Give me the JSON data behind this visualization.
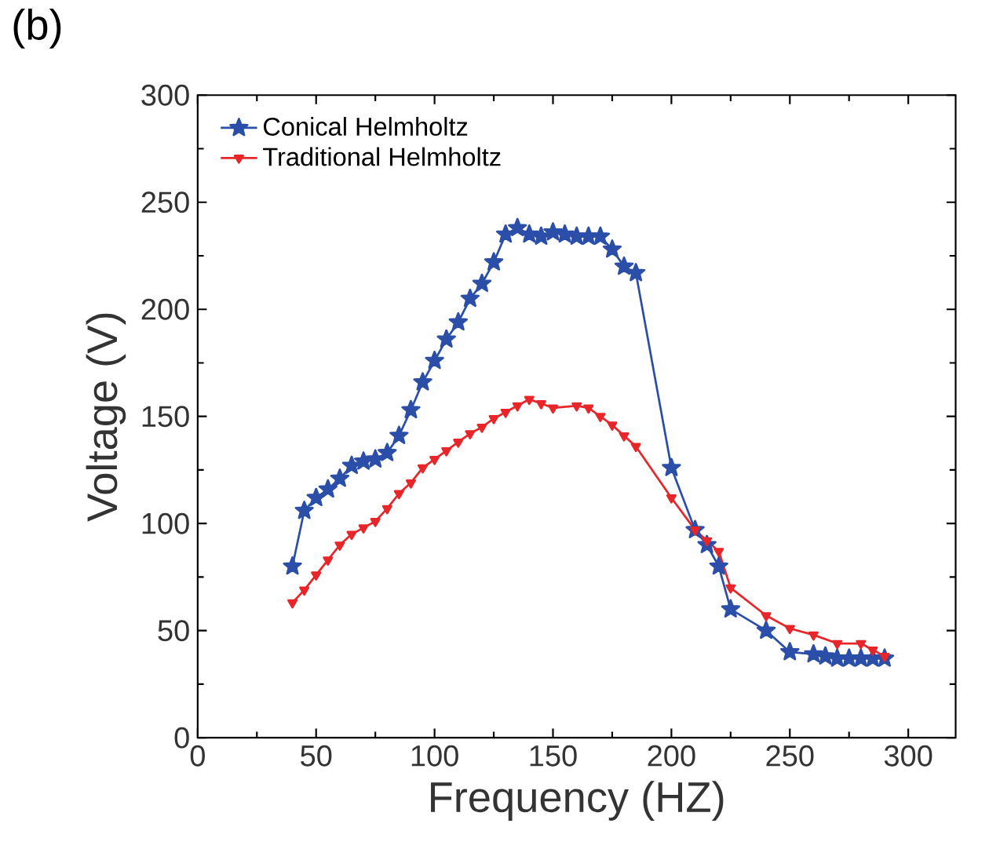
{
  "chart_data": {
    "type": "line",
    "xlabel": "Frequency (HZ)",
    "ylabel": "Voltage (V)",
    "annotations": [
      "(b)"
    ],
    "xlim": [
      0,
      320
    ],
    "ylim": [
      0,
      300
    ],
    "xticks": [
      0,
      50,
      100,
      150,
      200,
      250,
      300
    ],
    "yticks": [
      0,
      50,
      100,
      150,
      200,
      250,
      300
    ],
    "legend": "top left",
    "grid": false,
    "line_style": "solid",
    "series": [
      {
        "name": "Conical Helmholtz",
        "color": "#2b4fa8",
        "marker": "star",
        "x": [
          40,
          45,
          50,
          55,
          60,
          65,
          70,
          75,
          80,
          85,
          90,
          95,
          100,
          105,
          110,
          115,
          120,
          125,
          130,
          135,
          140,
          145,
          150,
          155,
          160,
          165,
          170,
          175,
          180,
          185,
          200,
          210,
          215,
          220,
          225,
          240,
          250,
          260,
          265,
          270,
          275,
          280,
          285,
          290
        ],
        "values": [
          80,
          106,
          112,
          116,
          121,
          127,
          129,
          130,
          133,
          141,
          153,
          166,
          176,
          186,
          194,
          205,
          212,
          222,
          235,
          238,
          235,
          234,
          236,
          235,
          234,
          234,
          234,
          228,
          220,
          217,
          126,
          97,
          90,
          80,
          60,
          50,
          40,
          39,
          38,
          37,
          37,
          37,
          37,
          37
        ]
      },
      {
        "name": "Traditional Helmholtz",
        "color": "#e8262a",
        "marker": "triangle",
        "x": [
          40,
          45,
          50,
          55,
          60,
          65,
          70,
          75,
          80,
          85,
          90,
          95,
          100,
          105,
          110,
          115,
          120,
          125,
          130,
          135,
          140,
          145,
          150,
          155,
          160,
          165,
          170,
          175,
          180,
          185,
          200,
          210,
          215,
          220,
          225,
          240,
          250,
          260,
          270,
          280,
          285,
          290
        ],
        "values": [
          63,
          69,
          76,
          83,
          90,
          95,
          98,
          101,
          107,
          114,
          119,
          126,
          130,
          134,
          138,
          142,
          145,
          149,
          152,
          155,
          158,
          156,
          154,
          null,
          155,
          154,
          150,
          146,
          141,
          136,
          112,
          97,
          92,
          87,
          70,
          57,
          51,
          48,
          44,
          44,
          41,
          38
        ]
      }
    ]
  }
}
